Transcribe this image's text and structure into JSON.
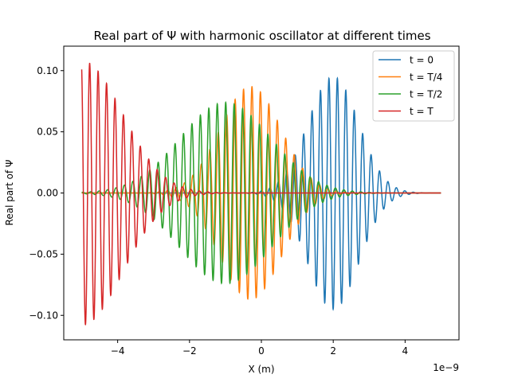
{
  "chart_data": {
    "type": "line",
    "title": "Real part of Ψ with harmonic oscillator at different times",
    "xlabel": "X (m)",
    "ylabel": "Real part of Ψ",
    "x_offset_label": "1e−9",
    "xlim": [
      -5.5,
      5.5
    ],
    "ylim": [
      -0.12,
      0.12
    ],
    "x_ticks": [
      -4,
      -2,
      0,
      2,
      4
    ],
    "x_tick_labels": [
      "−4",
      "−2",
      "0",
      "2",
      "4"
    ],
    "y_ticks": [
      -0.1,
      -0.05,
      0.0,
      0.05,
      0.1
    ],
    "y_tick_labels": [
      "−0.10",
      "−0.05",
      "0.00",
      "0.05",
      "0.10"
    ],
    "grid": false,
    "legend_position": "top-right",
    "series": [
      {
        "name": "t = 0",
        "color": "#1f77b4",
        "envelope_center": 2.0,
        "envelope_amplitude": 0.095,
        "envelope_width": 1.0
      },
      {
        "name": "t = T/4",
        "color": "#ff7f0e",
        "envelope_center": -0.3,
        "envelope_amplitude": 0.087,
        "envelope_width": 1.2
      },
      {
        "name": "t = T/2",
        "color": "#2ca02c",
        "envelope_center": -1.0,
        "envelope_amplitude": 0.074,
        "envelope_width": 1.8
      },
      {
        "name": "t = T",
        "color": "#d62728",
        "envelope_center": -5.0,
        "envelope_amplitude": 0.108,
        "envelope_width": 1.6
      }
    ]
  }
}
